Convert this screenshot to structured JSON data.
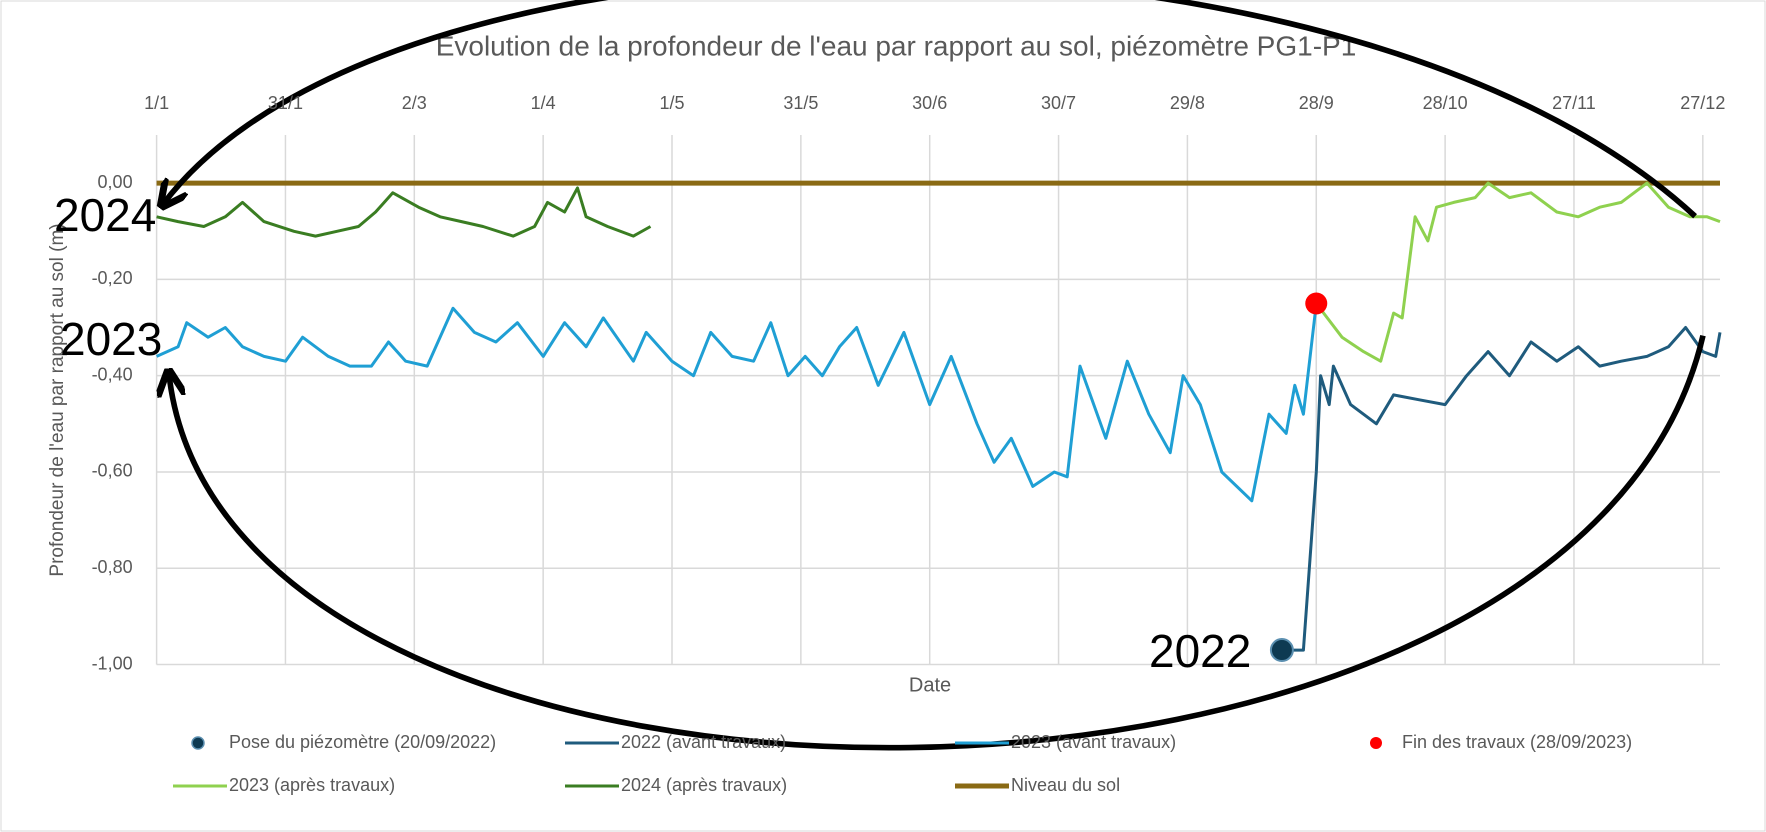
{
  "chart_data": {
    "type": "line",
    "title": "Evolution de la profondeur de l'eau par rapport au sol, piézomètre PG1-P1",
    "x_label": "Date",
    "y_label": "Profondeur de l'eau par rapport au sol (m)",
    "annotations": [
      "2024",
      "2023",
      "2022"
    ],
    "xlim": [
      1,
      365
    ],
    "xticks": [
      {
        "value": 1,
        "label": "1/1"
      },
      {
        "value": 31,
        "label": "31/1"
      },
      {
        "value": 61,
        "label": "2/3"
      },
      {
        "value": 91,
        "label": "1/4"
      },
      {
        "value": 121,
        "label": "1/5"
      },
      {
        "value": 151,
        "label": "31/5"
      },
      {
        "value": 181,
        "label": "30/6"
      },
      {
        "value": 211,
        "label": "30/7"
      },
      {
        "value": 241,
        "label": "29/8"
      },
      {
        "value": 271,
        "label": "28/9"
      },
      {
        "value": 301,
        "label": "28/10"
      },
      {
        "value": 331,
        "label": "27/11"
      },
      {
        "value": 361,
        "label": "27/12"
      }
    ],
    "ylim": [
      -1.0,
      0.1
    ],
    "yticks": [
      {
        "value": -1.0,
        "label": "-1,00"
      },
      {
        "value": -0.8,
        "label": "-0,80"
      },
      {
        "value": -0.6,
        "label": "-0,60"
      },
      {
        "value": -0.4,
        "label": "-0,40"
      },
      {
        "value": -0.2,
        "label": "-0,20"
      },
      {
        "value": 0,
        "label": "0,00"
      }
    ],
    "grid": true,
    "legend": "bottom",
    "series": [
      {
        "name": "Pose du piézomètre (20/09/2022)",
        "mode": "markers",
        "color": "#0e3a52",
        "x": [
          263
        ],
        "values": [
          -0.97
        ]
      },
      {
        "name": "2022 (avant travaux)",
        "mode": "lines",
        "color": "#1f5b7d",
        "x": [
          263,
          268,
          271,
          272,
          274,
          275,
          279,
          285,
          289,
          295,
          301,
          306,
          311,
          316,
          321,
          327,
          332,
          337,
          342,
          348,
          353,
          357,
          361,
          364,
          365
        ],
        "values": [
          -0.97,
          -0.97,
          -0.6,
          -0.4,
          -0.46,
          -0.38,
          -0.46,
          -0.5,
          -0.44,
          -0.45,
          -0.46,
          -0.4,
          -0.35,
          -0.4,
          -0.33,
          -0.37,
          -0.34,
          -0.38,
          -0.37,
          -0.36,
          -0.34,
          -0.3,
          -0.35,
          -0.36,
          -0.31
        ]
      },
      {
        "name": "2023 (avant travaux)",
        "mode": "lines",
        "color": "#1f9fd4",
        "x": [
          1,
          6,
          8,
          13,
          17,
          21,
          26,
          31,
          35,
          41,
          46,
          51,
          55,
          59,
          64,
          68,
          70,
          75,
          80,
          85,
          91,
          96,
          101,
          105,
          112,
          115,
          121,
          126,
          130,
          135,
          140,
          144,
          148,
          152,
          156,
          160,
          164,
          169,
          175,
          181,
          186,
          192,
          196,
          200,
          205,
          210,
          213,
          216,
          222,
          227,
          232,
          237,
          240,
          244,
          249,
          256,
          260,
          264,
          266,
          268,
          271
        ],
        "values": [
          -0.36,
          -0.34,
          -0.29,
          -0.32,
          -0.3,
          -0.34,
          -0.36,
          -0.37,
          -0.32,
          -0.36,
          -0.38,
          -0.38,
          -0.33,
          -0.37,
          -0.38,
          -0.3,
          -0.26,
          -0.31,
          -0.33,
          -0.29,
          -0.36,
          -0.29,
          -0.34,
          -0.28,
          -0.37,
          -0.31,
          -0.37,
          -0.4,
          -0.31,
          -0.36,
          -0.37,
          -0.29,
          -0.4,
          -0.36,
          -0.4,
          -0.34,
          -0.3,
          -0.42,
          -0.31,
          -0.46,
          -0.36,
          -0.5,
          -0.58,
          -0.53,
          -0.63,
          -0.6,
          -0.61,
          -0.38,
          -0.53,
          -0.37,
          -0.48,
          -0.56,
          -0.4,
          -0.46,
          -0.6,
          -0.66,
          -0.48,
          -0.52,
          -0.42,
          -0.48,
          -0.25
        ]
      },
      {
        "name": "Fin des travaux (28/09/2023)",
        "mode": "markers",
        "color": "#ff0000",
        "x": [
          271
        ],
        "values": [
          -0.25
        ]
      },
      {
        "name": "2023 (après travaux)",
        "mode": "lines",
        "color": "#8fd14f",
        "x": [
          271,
          277,
          282,
          286,
          289,
          291,
          294,
          297,
          299,
          303,
          308,
          311,
          316,
          321,
          327,
          332,
          337,
          342,
          348,
          353,
          358,
          362,
          365
        ],
        "values": [
          -0.25,
          -0.32,
          -0.35,
          -0.37,
          -0.27,
          -0.28,
          -0.07,
          -0.12,
          -0.05,
          -0.04,
          -0.03,
          0.0,
          -0.03,
          -0.02,
          -0.06,
          -0.07,
          -0.05,
          -0.04,
          0.0,
          -0.05,
          -0.07,
          -0.07,
          -0.08
        ]
      },
      {
        "name": "2024 (après travaux)",
        "mode": "lines",
        "color": "#3a7d22",
        "x": [
          1,
          6,
          12,
          17,
          21,
          26,
          33,
          38,
          43,
          48,
          52,
          56,
          62,
          67,
          72,
          77,
          84,
          89,
          92,
          96,
          99,
          101,
          106,
          112,
          116
        ],
        "values": [
          -0.07,
          -0.08,
          -0.09,
          -0.07,
          -0.04,
          -0.08,
          -0.1,
          -0.11,
          -0.1,
          -0.09,
          -0.06,
          -0.02,
          -0.05,
          -0.07,
          -0.08,
          -0.09,
          -0.11,
          -0.09,
          -0.04,
          -0.06,
          -0.01,
          -0.07,
          -0.09,
          -0.11,
          -0.09
        ]
      },
      {
        "name": "Niveau du sol",
        "mode": "lines",
        "color": "#8a6a14",
        "x": [
          1,
          365
        ],
        "values": [
          0,
          0
        ]
      }
    ]
  }
}
